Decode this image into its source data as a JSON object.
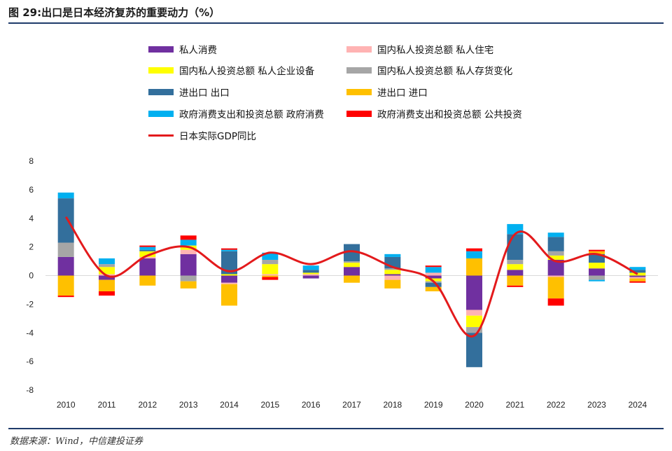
{
  "header": {
    "title": "图 29:出口是日本经济复苏的重要动力（%）"
  },
  "footer": {
    "source": "数据来源：Wind，中信建投证券"
  },
  "chart_data": {
    "type": "bar",
    "stacked": true,
    "categories": [
      "2010",
      "2011",
      "2012",
      "2013",
      "2014",
      "2015",
      "2016",
      "2017",
      "2018",
      "2019",
      "2020",
      "2021",
      "2022",
      "2023",
      "2024"
    ],
    "ylim": [
      -8,
      8
    ],
    "yticks": [
      -8,
      -6,
      -4,
      -2,
      0,
      2,
      4,
      6,
      8
    ],
    "legend_position": "top",
    "series": [
      {
        "name": "私人消费",
        "color": "#7030a0",
        "values": [
          1.3,
          -0.3,
          1.2,
          1.5,
          -0.5,
          0.0,
          -0.2,
          0.6,
          0.1,
          -0.2,
          -2.4,
          0.4,
          1.1,
          0.5,
          -0.1
        ]
      },
      {
        "name": "国内私人投资总额 私人住宅",
        "color": "#ffb3b3",
        "values": [
          0.0,
          0.1,
          0.1,
          0.3,
          -0.1,
          0.1,
          0.1,
          0.0,
          -0.3,
          0.2,
          -0.4,
          0.0,
          -0.1,
          0.0,
          -0.1
        ]
      },
      {
        "name": "国内私人投资总额 私人企业设备",
        "color": "#ffff00",
        "values": [
          0.0,
          0.5,
          0.4,
          0.3,
          0.1,
          0.7,
          0.1,
          0.3,
          0.3,
          -0.2,
          -0.8,
          0.4,
          0.3,
          0.4,
          0.2
        ]
      },
      {
        "name": "国内私人投资总额 私人存货变化",
        "color": "#a6a6a6",
        "values": [
          1.0,
          0.2,
          0.0,
          -0.4,
          0.0,
          0.3,
          0.0,
          0.1,
          0.1,
          -0.1,
          -0.4,
          0.3,
          0.3,
          -0.3,
          0.0
        ]
      },
      {
        "name": "进出口 出口",
        "color": "#336f9c",
        "values": [
          3.1,
          0.0,
          0.1,
          0.0,
          1.6,
          0.0,
          0.2,
          1.2,
          0.8,
          -0.3,
          -2.4,
          1.8,
          1.0,
          0.6,
          0.2
        ]
      },
      {
        "name": "进出口 进口",
        "color": "#ffc000",
        "values": [
          -1.4,
          -0.8,
          -0.7,
          -0.5,
          -1.5,
          -0.1,
          0.0,
          -0.5,
          -0.6,
          -0.3,
          1.2,
          -0.7,
          -1.5,
          0.2,
          -0.2
        ]
      },
      {
        "name": "政府消费支出和投资总额 政府消费",
        "color": "#00b0f0",
        "values": [
          0.4,
          0.4,
          0.2,
          0.4,
          0.1,
          0.5,
          0.3,
          0.0,
          0.2,
          0.4,
          0.5,
          0.7,
          0.3,
          -0.1,
          0.2
        ]
      },
      {
        "name": "政府消费支出和投资总额 公共投资",
        "color": "#ff0000",
        "values": [
          -0.1,
          -0.3,
          0.1,
          0.3,
          0.1,
          -0.2,
          0.0,
          0.0,
          0.0,
          0.1,
          0.2,
          -0.1,
          -0.5,
          0.1,
          -0.1
        ]
      }
    ],
    "line": {
      "name": "日本实际GDP同比",
      "color": "#e31a1c",
      "values": [
        4.1,
        0.0,
        1.4,
        2.0,
        0.3,
        1.6,
        0.8,
        1.7,
        0.6,
        -0.4,
        -4.2,
        2.9,
        1.0,
        1.5,
        0.1
      ]
    }
  }
}
